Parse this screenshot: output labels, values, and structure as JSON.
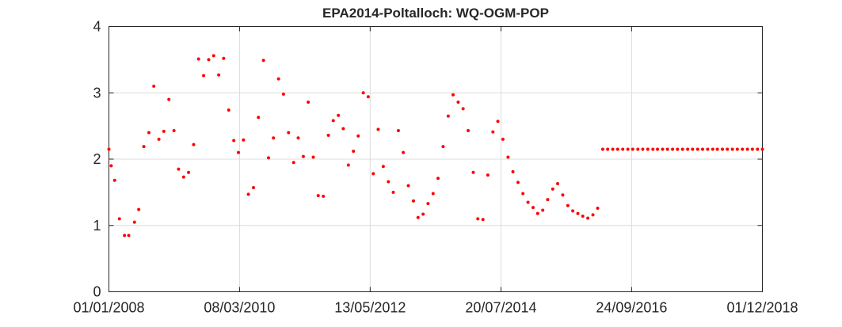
{
  "chart_data": {
    "type": "scatter",
    "title": "EPA2014-Poltalloch: WQ-OGM-POP",
    "xlabel": "",
    "ylabel": "",
    "x_range": [
      "01/01/2008",
      "01/12/2018"
    ],
    "ylim": [
      0,
      4
    ],
    "y_ticks": [
      0,
      1,
      2,
      3,
      4
    ],
    "x_ticks": [
      "01/01/2008",
      "08/03/2010",
      "13/05/2012",
      "20/07/2014",
      "24/09/2016",
      "01/12/2018"
    ],
    "grid": true,
    "marker_color": "#ff0000",
    "series": [
      {
        "points": [
          [
            "01/01/2008",
            2.15
          ],
          [
            "15/01/2008",
            1.9
          ],
          [
            "05/02/2008",
            1.68
          ],
          [
            "05/03/2008",
            1.1
          ],
          [
            "05/04/2008",
            0.85
          ],
          [
            "01/05/2008",
            0.85
          ],
          [
            "05/06/2008",
            1.05
          ],
          [
            "01/07/2008",
            1.24
          ],
          [
            "01/08/2008",
            2.19
          ],
          [
            "01/09/2008",
            2.4
          ],
          [
            "01/10/2008",
            3.1
          ],
          [
            "01/11/2008",
            2.3
          ],
          [
            "01/12/2008",
            2.42
          ],
          [
            "01/01/2009",
            2.9
          ],
          [
            "01/02/2009",
            2.43
          ],
          [
            "01/03/2009",
            1.85
          ],
          [
            "01/04/2009",
            1.73
          ],
          [
            "01/05/2009",
            1.8
          ],
          [
            "01/06/2009",
            2.22
          ],
          [
            "01/07/2009",
            3.51
          ],
          [
            "01/08/2009",
            3.26
          ],
          [
            "01/09/2009",
            3.5
          ],
          [
            "01/10/2009",
            3.56
          ],
          [
            "01/11/2009",
            3.27
          ],
          [
            "01/12/2009",
            3.52
          ],
          [
            "01/01/2010",
            2.74
          ],
          [
            "01/02/2010",
            2.28
          ],
          [
            "01/03/2010",
            2.1
          ],
          [
            "01/04/2010",
            2.29
          ],
          [
            "01/05/2010",
            1.47
          ],
          [
            "01/06/2010",
            1.57
          ],
          [
            "01/07/2010",
            2.63
          ],
          [
            "01/08/2010",
            3.49
          ],
          [
            "01/09/2010",
            2.02
          ],
          [
            "01/10/2010",
            2.32
          ],
          [
            "01/11/2010",
            3.21
          ],
          [
            "01/12/2010",
            2.98
          ],
          [
            "01/01/2011",
            2.4
          ],
          [
            "01/02/2011",
            1.95
          ],
          [
            "01/03/2011",
            2.32
          ],
          [
            "01/04/2011",
            2.04
          ],
          [
            "01/05/2011",
            2.86
          ],
          [
            "01/06/2011",
            2.03
          ],
          [
            "01/07/2011",
            1.45
          ],
          [
            "01/08/2011",
            1.44
          ],
          [
            "01/09/2011",
            2.36
          ],
          [
            "01/10/2011",
            2.58
          ],
          [
            "01/11/2011",
            2.66
          ],
          [
            "01/12/2011",
            2.46
          ],
          [
            "01/01/2012",
            1.91
          ],
          [
            "01/02/2012",
            2.12
          ],
          [
            "01/03/2012",
            2.35
          ],
          [
            "01/04/2012",
            3.0
          ],
          [
            "01/05/2012",
            2.94
          ],
          [
            "01/06/2012",
            1.78
          ],
          [
            "01/07/2012",
            2.45
          ],
          [
            "01/08/2012",
            1.89
          ],
          [
            "01/09/2012",
            1.66
          ],
          [
            "01/10/2012",
            1.5
          ],
          [
            "01/11/2012",
            2.43
          ],
          [
            "01/12/2012",
            2.1
          ],
          [
            "01/01/2013",
            1.6
          ],
          [
            "01/02/2013",
            1.37
          ],
          [
            "01/03/2013",
            1.12
          ],
          [
            "01/04/2013",
            1.17
          ],
          [
            "01/05/2013",
            1.33
          ],
          [
            "01/06/2013",
            1.48
          ],
          [
            "01/07/2013",
            1.71
          ],
          [
            "01/08/2013",
            2.19
          ],
          [
            "01/09/2013",
            2.65
          ],
          [
            "01/10/2013",
            2.97
          ],
          [
            "01/11/2013",
            2.86
          ],
          [
            "01/12/2013",
            2.76
          ],
          [
            "01/01/2014",
            2.43
          ],
          [
            "01/02/2014",
            1.8
          ],
          [
            "01/03/2014",
            1.1
          ],
          [
            "01/04/2014",
            1.09
          ],
          [
            "01/05/2014",
            1.76
          ],
          [
            "01/06/2014",
            2.41
          ],
          [
            "01/07/2014",
            2.57
          ],
          [
            "01/08/2014",
            2.3
          ],
          [
            "01/09/2014",
            2.03
          ],
          [
            "01/10/2014",
            1.81
          ],
          [
            "01/11/2014",
            1.65
          ],
          [
            "01/12/2014",
            1.48
          ],
          [
            "01/01/2015",
            1.35
          ],
          [
            "01/02/2015",
            1.27
          ],
          [
            "01/03/2015",
            1.18
          ],
          [
            "01/04/2015",
            1.23
          ],
          [
            "01/05/2015",
            1.39
          ],
          [
            "01/06/2015",
            1.55
          ],
          [
            "01/07/2015",
            1.63
          ],
          [
            "01/08/2015",
            1.46
          ],
          [
            "01/09/2015",
            1.3
          ],
          [
            "01/10/2015",
            1.22
          ],
          [
            "01/11/2015",
            1.18
          ],
          [
            "01/12/2015",
            1.14
          ],
          [
            "01/01/2016",
            1.11
          ],
          [
            "01/02/2016",
            1.16
          ],
          [
            "01/03/2016",
            1.26
          ],
          [
            "01/04/2016",
            2.15
          ],
          [
            "01/05/2016",
            2.15
          ],
          [
            "01/06/2016",
            2.15
          ],
          [
            "01/07/2016",
            2.15
          ],
          [
            "01/08/2016",
            2.15
          ],
          [
            "01/09/2016",
            2.15
          ],
          [
            "01/10/2016",
            2.15
          ],
          [
            "01/11/2016",
            2.15
          ],
          [
            "01/12/2016",
            2.15
          ],
          [
            "01/01/2017",
            2.15
          ],
          [
            "01/02/2017",
            2.15
          ],
          [
            "01/03/2017",
            2.15
          ],
          [
            "01/04/2017",
            2.15
          ],
          [
            "01/05/2017",
            2.15
          ],
          [
            "01/06/2017",
            2.15
          ],
          [
            "01/07/2017",
            2.15
          ],
          [
            "01/08/2017",
            2.15
          ],
          [
            "01/09/2017",
            2.15
          ],
          [
            "01/10/2017",
            2.15
          ],
          [
            "01/11/2017",
            2.15
          ],
          [
            "01/12/2017",
            2.15
          ],
          [
            "01/01/2018",
            2.15
          ],
          [
            "01/02/2018",
            2.15
          ],
          [
            "01/03/2018",
            2.15
          ],
          [
            "01/04/2018",
            2.15
          ],
          [
            "01/05/2018",
            2.15
          ],
          [
            "01/06/2018",
            2.15
          ],
          [
            "01/07/2018",
            2.15
          ],
          [
            "01/08/2018",
            2.15
          ],
          [
            "01/09/2018",
            2.15
          ],
          [
            "01/10/2018",
            2.15
          ],
          [
            "01/11/2018",
            2.15
          ],
          [
            "01/12/2018",
            2.15
          ]
        ]
      }
    ]
  }
}
